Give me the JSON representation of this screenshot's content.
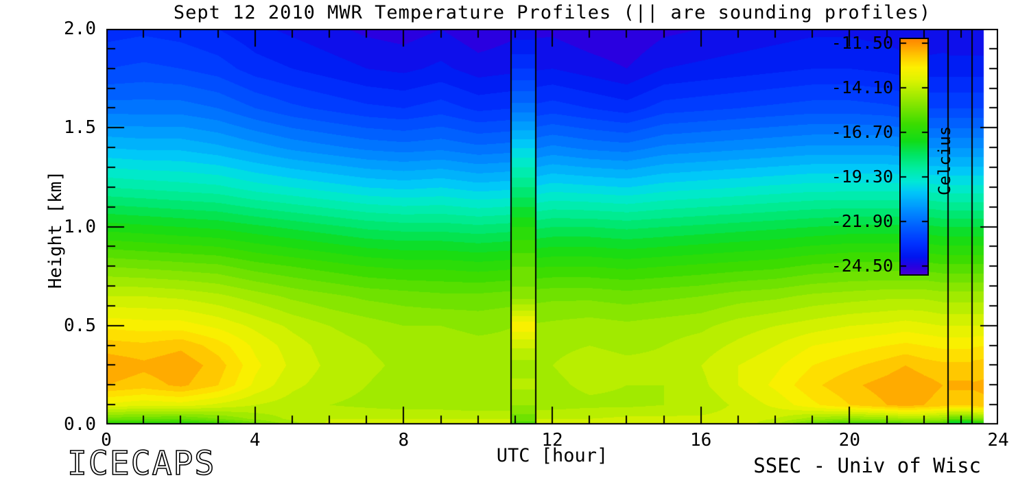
{
  "title": "Sept 12 2010 MWR Temperature Profiles (|| are sounding profiles)",
  "footer": {
    "left": "ICECAPS",
    "right": "SSEC - Univ of Wisc"
  },
  "chart_data": {
    "type": "heatmap",
    "subtype": "filled-contour-time-height",
    "title": "Sept 12 2010 MWR Temperature Profiles (|| are sounding profiles)",
    "xlabel": "UTC [hour]",
    "ylabel": "Height [km]",
    "xlim": [
      0,
      24
    ],
    "ylim": [
      0.0,
      2.0
    ],
    "x_tick_labels": [
      "0",
      "4",
      "8",
      "12",
      "16",
      "20",
      "24"
    ],
    "x_tick_values": [
      0,
      4,
      8,
      12,
      16,
      20,
      24
    ],
    "x_minor_step_hours": 1,
    "y_tick_labels": [
      "2.0",
      "1.5",
      "1.0",
      "0.5",
      "0.0"
    ],
    "y_tick_values": [
      2.0,
      1.5,
      1.0,
      0.5,
      0.0
    ],
    "y_minor_step_km": 0.1,
    "grid": "off",
    "contour_step_c": 0.4,
    "no_data_after_hour": 23.6,
    "hours": [
      0,
      1,
      2,
      3,
      4,
      5,
      6,
      7,
      8,
      9,
      10,
      11,
      12,
      13,
      14,
      15,
      16,
      17,
      18,
      19,
      20,
      21,
      21.5,
      22,
      22.5,
      23,
      23.67
    ],
    "heights_km": [
      0.0,
      0.03,
      0.1,
      0.2,
      0.3,
      0.4,
      0.5,
      0.65,
      0.8,
      1.0,
      1.2,
      1.4,
      1.6,
      1.8,
      2.0
    ],
    "temps_c": [
      [
        -16.8,
        -16.9,
        -17.0,
        -16.6,
        -15.6,
        -14.6,
        -13.9,
        -13.7,
        -13.6,
        -13.6,
        -13.6,
        -13.6,
        -13.6,
        -13.6,
        -13.5,
        -13.5,
        -13.6,
        -13.7,
        -14.4,
        -15.8,
        -16.5,
        -16.3,
        -16.1,
        -16.1,
        -16.3,
        -17.6,
        -17.3
      ],
      [
        -15.4,
        -15.5,
        -15.6,
        -15.2,
        -14.7,
        -14.3,
        -14.0,
        -14.0,
        -14.0,
        -14.0,
        -14.0,
        -14.0,
        -14.0,
        -14.0,
        -13.9,
        -13.9,
        -13.9,
        -13.8,
        -14.0,
        -14.6,
        -14.9,
        -14.7,
        -14.5,
        -14.5,
        -14.7,
        -15.2,
        -15.0
      ],
      [
        -13.3,
        -13.5,
        -13.4,
        -13.7,
        -14.0,
        -14.2,
        -14.4,
        -14.5,
        -14.6,
        -14.6,
        -14.7,
        -14.7,
        -14.6,
        -14.5,
        -14.5,
        -14.4,
        -14.3,
        -13.9,
        -13.5,
        -12.9,
        -12.4,
        -12.0,
        -11.8,
        -12.0,
        -12.2,
        -12.2,
        -12.1
      ],
      [
        -12.0,
        -12.2,
        -11.9,
        -12.4,
        -13.3,
        -13.9,
        -14.2,
        -14.4,
        -14.6,
        -14.6,
        -14.7,
        -14.7,
        -14.5,
        -14.3,
        -14.4,
        -14.4,
        -14.1,
        -13.6,
        -13.1,
        -12.5,
        -12.1,
        -11.8,
        -11.6,
        -11.8,
        -12.0,
        -12.0,
        -11.9
      ],
      [
        -11.7,
        -11.9,
        -11.7,
        -12.2,
        -13.1,
        -13.7,
        -14.1,
        -14.3,
        -14.5,
        -14.5,
        -14.6,
        -14.6,
        -14.4,
        -14.2,
        -14.3,
        -14.3,
        -14.0,
        -13.6,
        -13.3,
        -12.8,
        -12.5,
        -12.2,
        -12.0,
        -12.2,
        -12.3,
        -12.3,
        -12.2
      ],
      [
        -12.2,
        -12.3,
        -12.1,
        -12.6,
        -13.3,
        -13.8,
        -14.2,
        -14.4,
        -14.6,
        -14.6,
        -14.7,
        -14.7,
        -14.5,
        -14.4,
        -14.5,
        -14.4,
        -14.2,
        -13.9,
        -13.6,
        -13.2,
        -13.0,
        -12.8,
        -12.7,
        -12.8,
        -12.9,
        -12.9,
        -12.8
      ],
      [
        -12.9,
        -13.0,
        -13.0,
        -13.3,
        -13.7,
        -14.1,
        -14.4,
        -14.6,
        -14.8,
        -14.8,
        -14.9,
        -14.8,
        -14.7,
        -14.6,
        -14.7,
        -14.6,
        -14.5,
        -14.2,
        -14.0,
        -13.8,
        -13.6,
        -13.5,
        -13.4,
        -13.5,
        -13.6,
        -13.6,
        -13.6
      ],
      [
        -14.0,
        -14.0,
        -14.1,
        -14.3,
        -14.6,
        -14.9,
        -15.1,
        -15.3,
        -15.4,
        -15.5,
        -15.5,
        -15.4,
        -15.3,
        -15.3,
        -15.4,
        -15.3,
        -15.2,
        -15.0,
        -14.9,
        -14.7,
        -14.6,
        -14.5,
        -14.5,
        -14.5,
        -14.6,
        -14.6,
        -14.6
      ],
      [
        -15.2,
        -15.3,
        -15.4,
        -15.5,
        -15.8,
        -16.0,
        -16.2,
        -16.4,
        -16.5,
        -16.5,
        -16.6,
        -16.5,
        -16.4,
        -16.4,
        -16.5,
        -16.4,
        -16.3,
        -16.2,
        -16.1,
        -15.9,
        -15.8,
        -15.8,
        -15.8,
        -15.8,
        -15.9,
        -15.9,
        -15.9
      ],
      [
        -17.0,
        -17.1,
        -17.2,
        -17.3,
        -17.5,
        -17.7,
        -17.9,
        -18.1,
        -18.2,
        -18.2,
        -18.3,
        -18.2,
        -18.0,
        -18.0,
        -18.1,
        -18.0,
        -17.9,
        -17.8,
        -17.7,
        -17.6,
        -17.5,
        -17.5,
        -17.5,
        -17.5,
        -17.6,
        -17.6,
        -17.6
      ],
      [
        -18.8,
        -18.9,
        -19.0,
        -19.1,
        -19.4,
        -19.6,
        -19.8,
        -20.0,
        -20.1,
        -20.0,
        -20.2,
        -20.1,
        -19.8,
        -19.9,
        -20.0,
        -19.8,
        -19.7,
        -19.6,
        -19.5,
        -19.4,
        -19.4,
        -19.4,
        -19.4,
        -19.4,
        -19.5,
        -19.5,
        -19.5
      ],
      [
        -20.4,
        -20.5,
        -20.5,
        -20.7,
        -21.0,
        -21.3,
        -21.5,
        -21.7,
        -21.8,
        -21.7,
        -21.9,
        -21.8,
        -21.5,
        -21.7,
        -21.8,
        -21.5,
        -21.4,
        -21.3,
        -21.2,
        -21.1,
        -21.1,
        -21.1,
        -21.2,
        -21.2,
        -21.2,
        -21.2,
        -21.2
      ],
      [
        -21.8,
        -21.8,
        -21.8,
        -22.0,
        -22.4,
        -22.7,
        -22.9,
        -23.1,
        -23.2,
        -23.0,
        -23.3,
        -23.2,
        -23.0,
        -23.2,
        -23.4,
        -23.0,
        -22.9,
        -22.8,
        -22.7,
        -22.6,
        -22.6,
        -22.7,
        -22.8,
        -22.8,
        -22.8,
        -22.8,
        -22.8
      ],
      [
        -22.8,
        -22.7,
        -22.8,
        -23.0,
        -23.4,
        -23.6,
        -23.8,
        -24.0,
        -24.1,
        -23.9,
        -24.2,
        -24.1,
        -24.0,
        -24.2,
        -24.4,
        -24.0,
        -23.9,
        -23.8,
        -23.7,
        -23.6,
        -23.6,
        -23.7,
        -23.8,
        -23.8,
        -23.8,
        -23.8,
        -23.8
      ],
      [
        -23.4,
        -23.3,
        -23.4,
        -23.6,
        -23.9,
        -24.1,
        -24.3,
        -24.5,
        -24.6,
        -24.4,
        -24.7,
        -24.5,
        -24.5,
        -24.7,
        -24.8,
        -24.5,
        -24.4,
        -24.3,
        -24.2,
        -24.1,
        -24.1,
        -24.2,
        -24.3,
        -24.4,
        -24.3,
        -24.4,
        -24.4
      ]
    ],
    "sounding_profiles": [
      {
        "start_hour": 10.9,
        "end_hour": 11.55,
        "temps_c": [
          -16.0,
          -15.4,
          -14.8,
          -14.3,
          -14.6,
          -13.9,
          -12.9,
          -15.0,
          -15.6,
          -16.8,
          -18.4,
          -20.0,
          -21.8,
          -23.2,
          -24.3
        ]
      },
      {
        "start_hour": 22.65,
        "end_hour": 23.3,
        "temps_c": [
          -18.6,
          -15.6,
          -12.3,
          -11.9,
          -12.3,
          -12.9,
          -13.6,
          -14.6,
          -15.9,
          -17.6,
          -19.5,
          -21.2,
          -22.8,
          -23.8,
          -24.4
        ]
      }
    ],
    "colormap": [
      [
        -25.1,
        "#4a00d0"
      ],
      [
        -24.6,
        "#2a00e0"
      ],
      [
        -24.0,
        "#0016f0"
      ],
      [
        -23.2,
        "#0033ff"
      ],
      [
        -22.2,
        "#0060ff"
      ],
      [
        -21.2,
        "#0092ff"
      ],
      [
        -20.2,
        "#00c8f8"
      ],
      [
        -19.6,
        "#00e8d8"
      ],
      [
        -18.8,
        "#00eda0"
      ],
      [
        -18.0,
        "#00e562"
      ],
      [
        -17.2,
        "#12dc17"
      ],
      [
        -16.2,
        "#3cdc00"
      ],
      [
        -15.2,
        "#7ce400"
      ],
      [
        -14.4,
        "#adec00"
      ],
      [
        -13.6,
        "#dff300"
      ],
      [
        -12.9,
        "#fdf000"
      ],
      [
        -12.2,
        "#ffc800"
      ],
      [
        -11.6,
        "#ff9d00"
      ],
      [
        -11.0,
        "#ff7800"
      ]
    ],
    "colorbar": {
      "caption": "Celcius",
      "labels": [
        "-11.50",
        "-14.10",
        "-16.70",
        "-19.30",
        "-21.90",
        "-24.50"
      ],
      "values": [
        -11.5,
        -14.1,
        -16.7,
        -19.3,
        -21.9,
        -24.5
      ],
      "top_value": -11.25,
      "bottom_value": -25.0
    }
  }
}
